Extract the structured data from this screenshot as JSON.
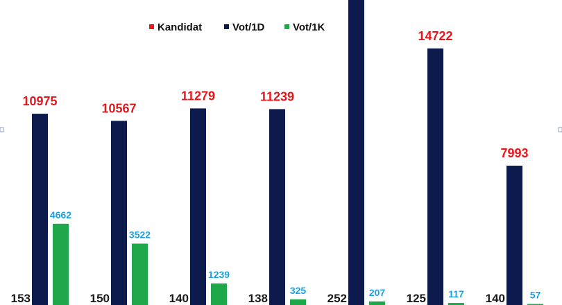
{
  "chart_data": {
    "type": "bar",
    "categories": [
      "",
      "",
      "",
      "",
      "",
      "",
      ""
    ],
    "series": [
      {
        "name": "Kandidat",
        "values": [
          153,
          150,
          140,
          138,
          252,
          125,
          140
        ]
      },
      {
        "name": "Vot/1D",
        "values": [
          10975,
          10567,
          11279,
          11239,
          17500,
          14722,
          7993
        ]
      },
      {
        "name": "Vot/1K",
        "values": [
          4662,
          3522,
          1239,
          325,
          207,
          117,
          57
        ]
      }
    ],
    "data_labels": {
      "Kandidat": [
        "153",
        "150",
        "140",
        "138",
        "252",
        "125",
        "140"
      ],
      "Vot/1D": [
        "10975",
        "10567",
        "11279",
        "11239",
        "",
        "14722",
        "7993"
      ],
      "Vot/1K": [
        "4662",
        "3522",
        "1239",
        "325",
        "207",
        "117",
        "57"
      ]
    },
    "title": "",
    "xlabel": "",
    "ylabel": "",
    "ylim": [
      0,
      17500
    ],
    "grid": false,
    "legend": "top-center",
    "colors": {
      "Kandidat": "#e8161b",
      "Vot/1D": "#0d1b4c",
      "Vot/1K": "#1ea84a",
      "label_1d": "#e8161b",
      "label_1k": "#1ba1e2",
      "label_cand": "#1a1a1a"
    }
  }
}
